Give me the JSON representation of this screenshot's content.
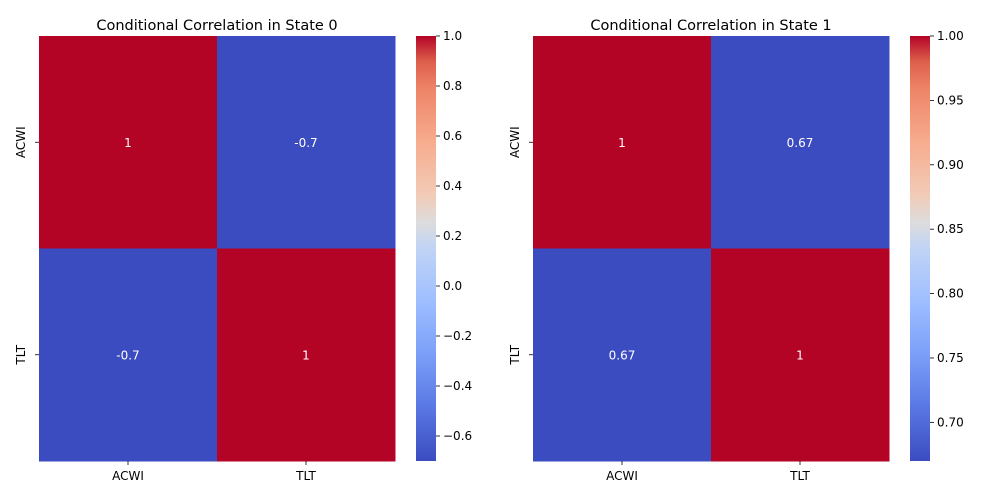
{
  "chart_data": [
    {
      "type": "heatmap",
      "title": "Conditional Correlation in State 0",
      "x_categories": [
        "ACWI",
        "TLT"
      ],
      "y_categories": [
        "ACWI",
        "TLT"
      ],
      "values": [
        [
          1,
          -0.7
        ],
        [
          -0.7,
          1
        ]
      ],
      "cell_labels": [
        [
          "1",
          "-0.7"
        ],
        [
          "-0.7",
          "1"
        ]
      ],
      "colorbar": {
        "min": -0.7,
        "max": 1.0,
        "ticks": [
          -0.6,
          -0.4,
          -0.2,
          0.0,
          0.2,
          0.4,
          0.6,
          0.8,
          1.0
        ],
        "tick_labels": [
          "−0.6",
          "−0.4",
          "−0.2",
          "0.0",
          "0.2",
          "0.4",
          "0.6",
          "0.8",
          "1.0"
        ]
      },
      "colormap": "coolwarm"
    },
    {
      "type": "heatmap",
      "title": "Conditional Correlation in State 1",
      "x_categories": [
        "ACWI",
        "TLT"
      ],
      "y_categories": [
        "ACWI",
        "TLT"
      ],
      "values": [
        [
          1,
          0.67
        ],
        [
          0.67,
          1
        ]
      ],
      "cell_labels": [
        [
          "1",
          "0.67"
        ],
        [
          "0.67",
          "1"
        ]
      ],
      "colorbar": {
        "min": 0.67,
        "max": 1.0,
        "ticks": [
          0.7,
          0.75,
          0.8,
          0.85,
          0.9,
          0.95,
          1.0
        ],
        "tick_labels": [
          "0.70",
          "0.75",
          "0.80",
          "0.85",
          "0.90",
          "0.95",
          "1.00"
        ]
      },
      "colormap": "coolwarm"
    }
  ]
}
